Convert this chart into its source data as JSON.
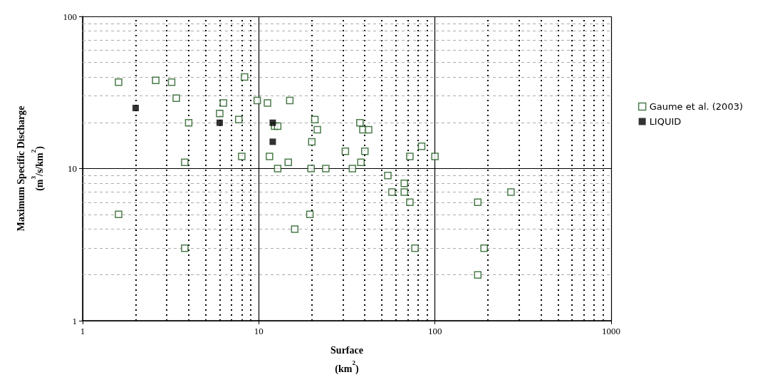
{
  "chart_data": {
    "type": "scatter",
    "xlabel": "Surface\n(km$^{2}$)",
    "ylabel": "Maximum Specific Discharge\n(m$^{3}$/s/km$^{2}$)",
    "log": "xy",
    "xlim": [
      1,
      1000
    ],
    "ylim": [
      1,
      100
    ],
    "xticks": [
      1,
      10,
      100,
      1000
    ],
    "yticks": [
      1,
      10,
      100
    ],
    "grid": true,
    "legend": "right",
    "marker": "square",
    "series": [
      {
        "name": "Gaume et al. (2003)",
        "color": "#1e5a1e",
        "x": [
          1.6,
          2.6,
          3.2,
          3.4,
          4.0,
          3.8,
          1.6,
          3.8,
          6.0,
          6.3,
          7.7,
          8.0,
          8.3,
          9.8,
          11.2,
          11.5,
          12.3,
          12.8,
          12.8,
          14.7,
          15,
          16,
          19.5,
          20,
          19.8,
          20.8,
          21.5,
          24,
          31,
          34,
          37.5,
          38,
          39,
          40,
          42,
          54,
          57,
          67,
          67,
          72,
          72,
          77,
          84,
          100,
          175,
          175,
          190,
          270
        ],
        "values": [
          37,
          38,
          37,
          29,
          20,
          11,
          5,
          3,
          23,
          27,
          21,
          12,
          40,
          28,
          27,
          12,
          19,
          19,
          10,
          11,
          28,
          4,
          5,
          15,
          10,
          21,
          18,
          10,
          13,
          10,
          20,
          11,
          18,
          13,
          18,
          9,
          7,
          8,
          7,
          6,
          12,
          3,
          14,
          12,
          6,
          2,
          3,
          7
        ]
      },
      {
        "name": "LIQUID",
        "color": "#000000",
        "x": [
          2,
          6,
          12,
          12
        ],
        "values": [
          25,
          20,
          20,
          15
        ]
      }
    ]
  }
}
